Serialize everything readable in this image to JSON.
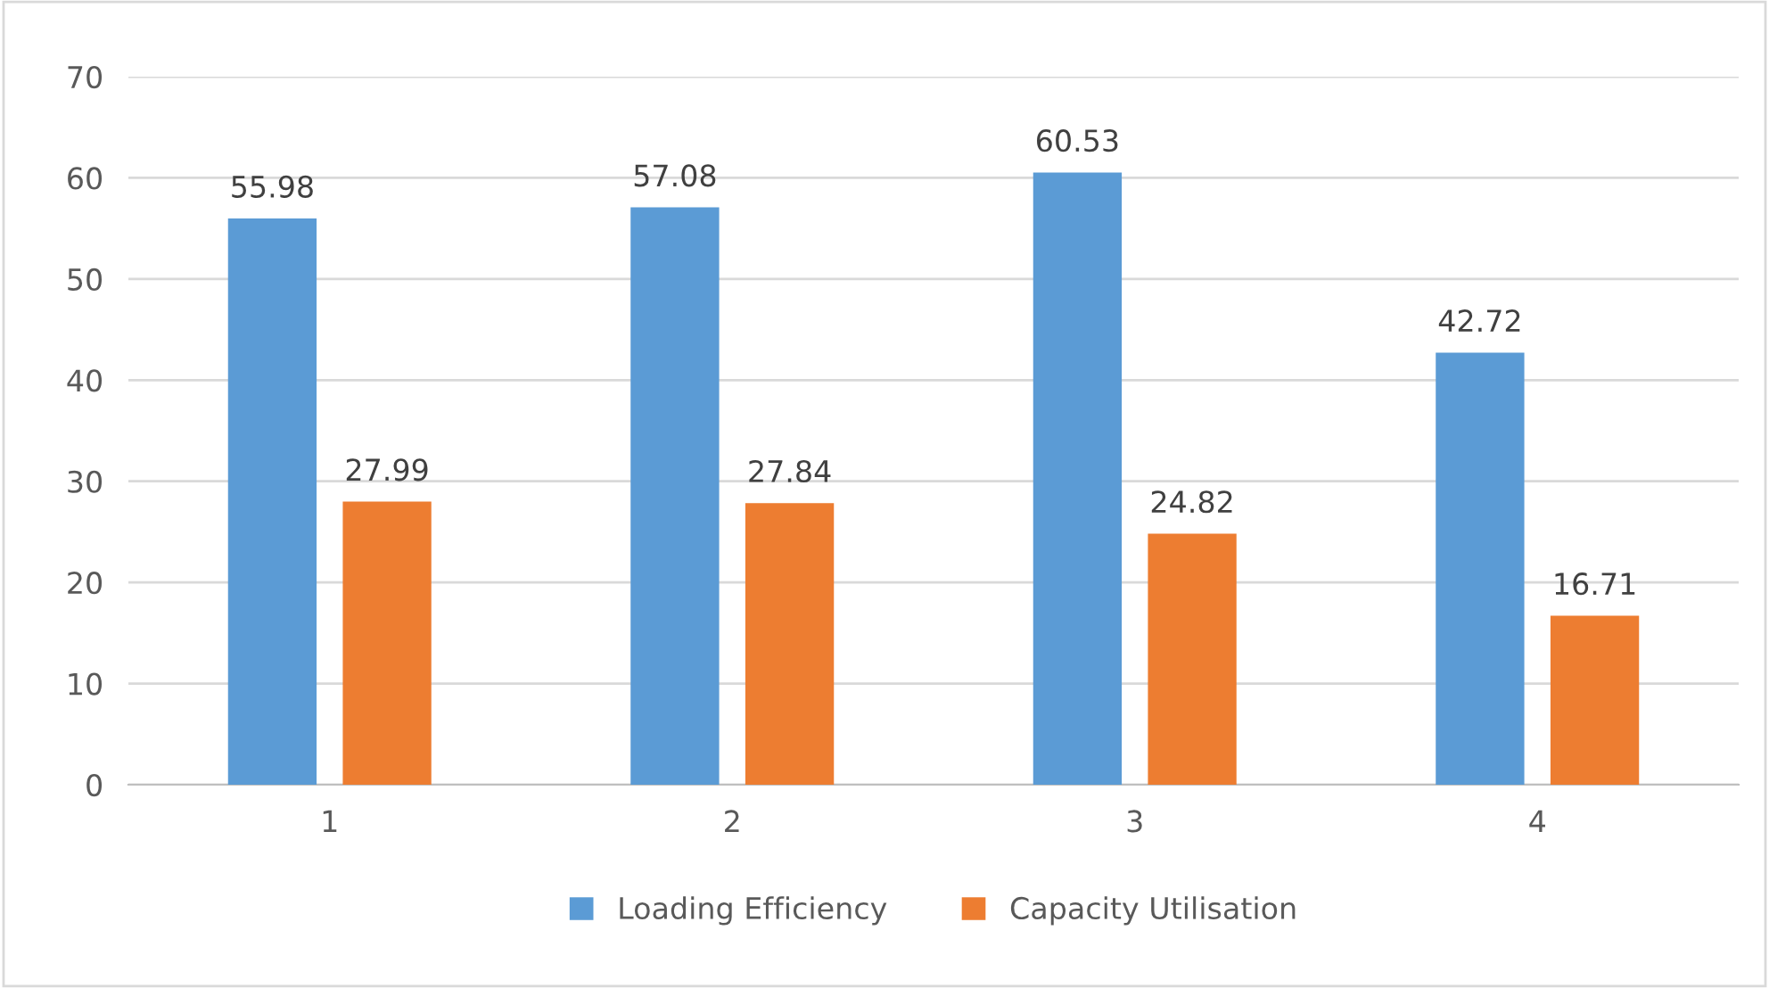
{
  "chart_data": {
    "type": "bar",
    "categories": [
      "1",
      "2",
      "3",
      "4"
    ],
    "series": [
      {
        "name": "Loading Efficiency",
        "color": "#5b9bd5",
        "values": [
          55.98,
          57.08,
          60.53,
          42.72
        ]
      },
      {
        "name": "Capacity Utilisation",
        "color": "#ed7d31",
        "values": [
          27.99,
          27.84,
          24.82,
          16.71
        ]
      }
    ],
    "ylim": [
      0,
      70
    ],
    "yticks": [
      0,
      10,
      20,
      30,
      40,
      50,
      60,
      70
    ],
    "grid": "y",
    "legend": "bottom",
    "data_labels": true
  }
}
